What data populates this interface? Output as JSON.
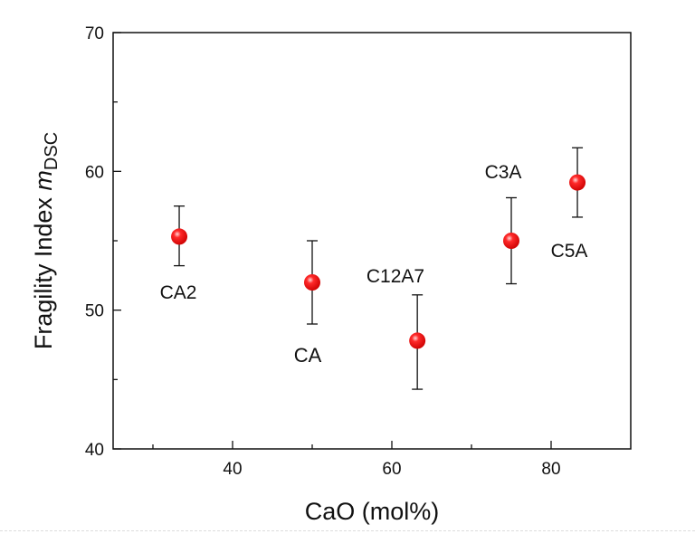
{
  "chart_data": {
    "type": "scatter",
    "title": "",
    "xlabel": "CaO (mol%)",
    "ylabel_main": "Fragility Index ",
    "ylabel_var": "m",
    "ylabel_sub": "DSC",
    "xlim": [
      25,
      90
    ],
    "ylim": [
      40,
      70
    ],
    "xticks": [
      40,
      60,
      80
    ],
    "xminor": [
      30,
      50,
      70
    ],
    "yticks": [
      40,
      50,
      60,
      70
    ],
    "yminor": [
      45,
      55,
      65
    ],
    "grid": false,
    "marker_color": "#ee1111",
    "points": [
      {
        "label": "CA2",
        "x": 33.3,
        "y": 55.3,
        "err_low": 53.2,
        "err_high": 57.5
      },
      {
        "label": "CA",
        "x": 50,
        "y": 52.0,
        "err_low": 49.0,
        "err_high": 55.0
      },
      {
        "label": "C12A7",
        "x": 63.2,
        "y": 47.8,
        "err_low": 44.3,
        "err_high": 51.1
      },
      {
        "label": "C3A",
        "x": 75,
        "y": 55.0,
        "err_low": 51.9,
        "err_high": 58.1
      },
      {
        "label": "C5A",
        "x": 83.3,
        "y": 59.2,
        "err_low": 56.7,
        "err_high": 61.7
      }
    ]
  }
}
